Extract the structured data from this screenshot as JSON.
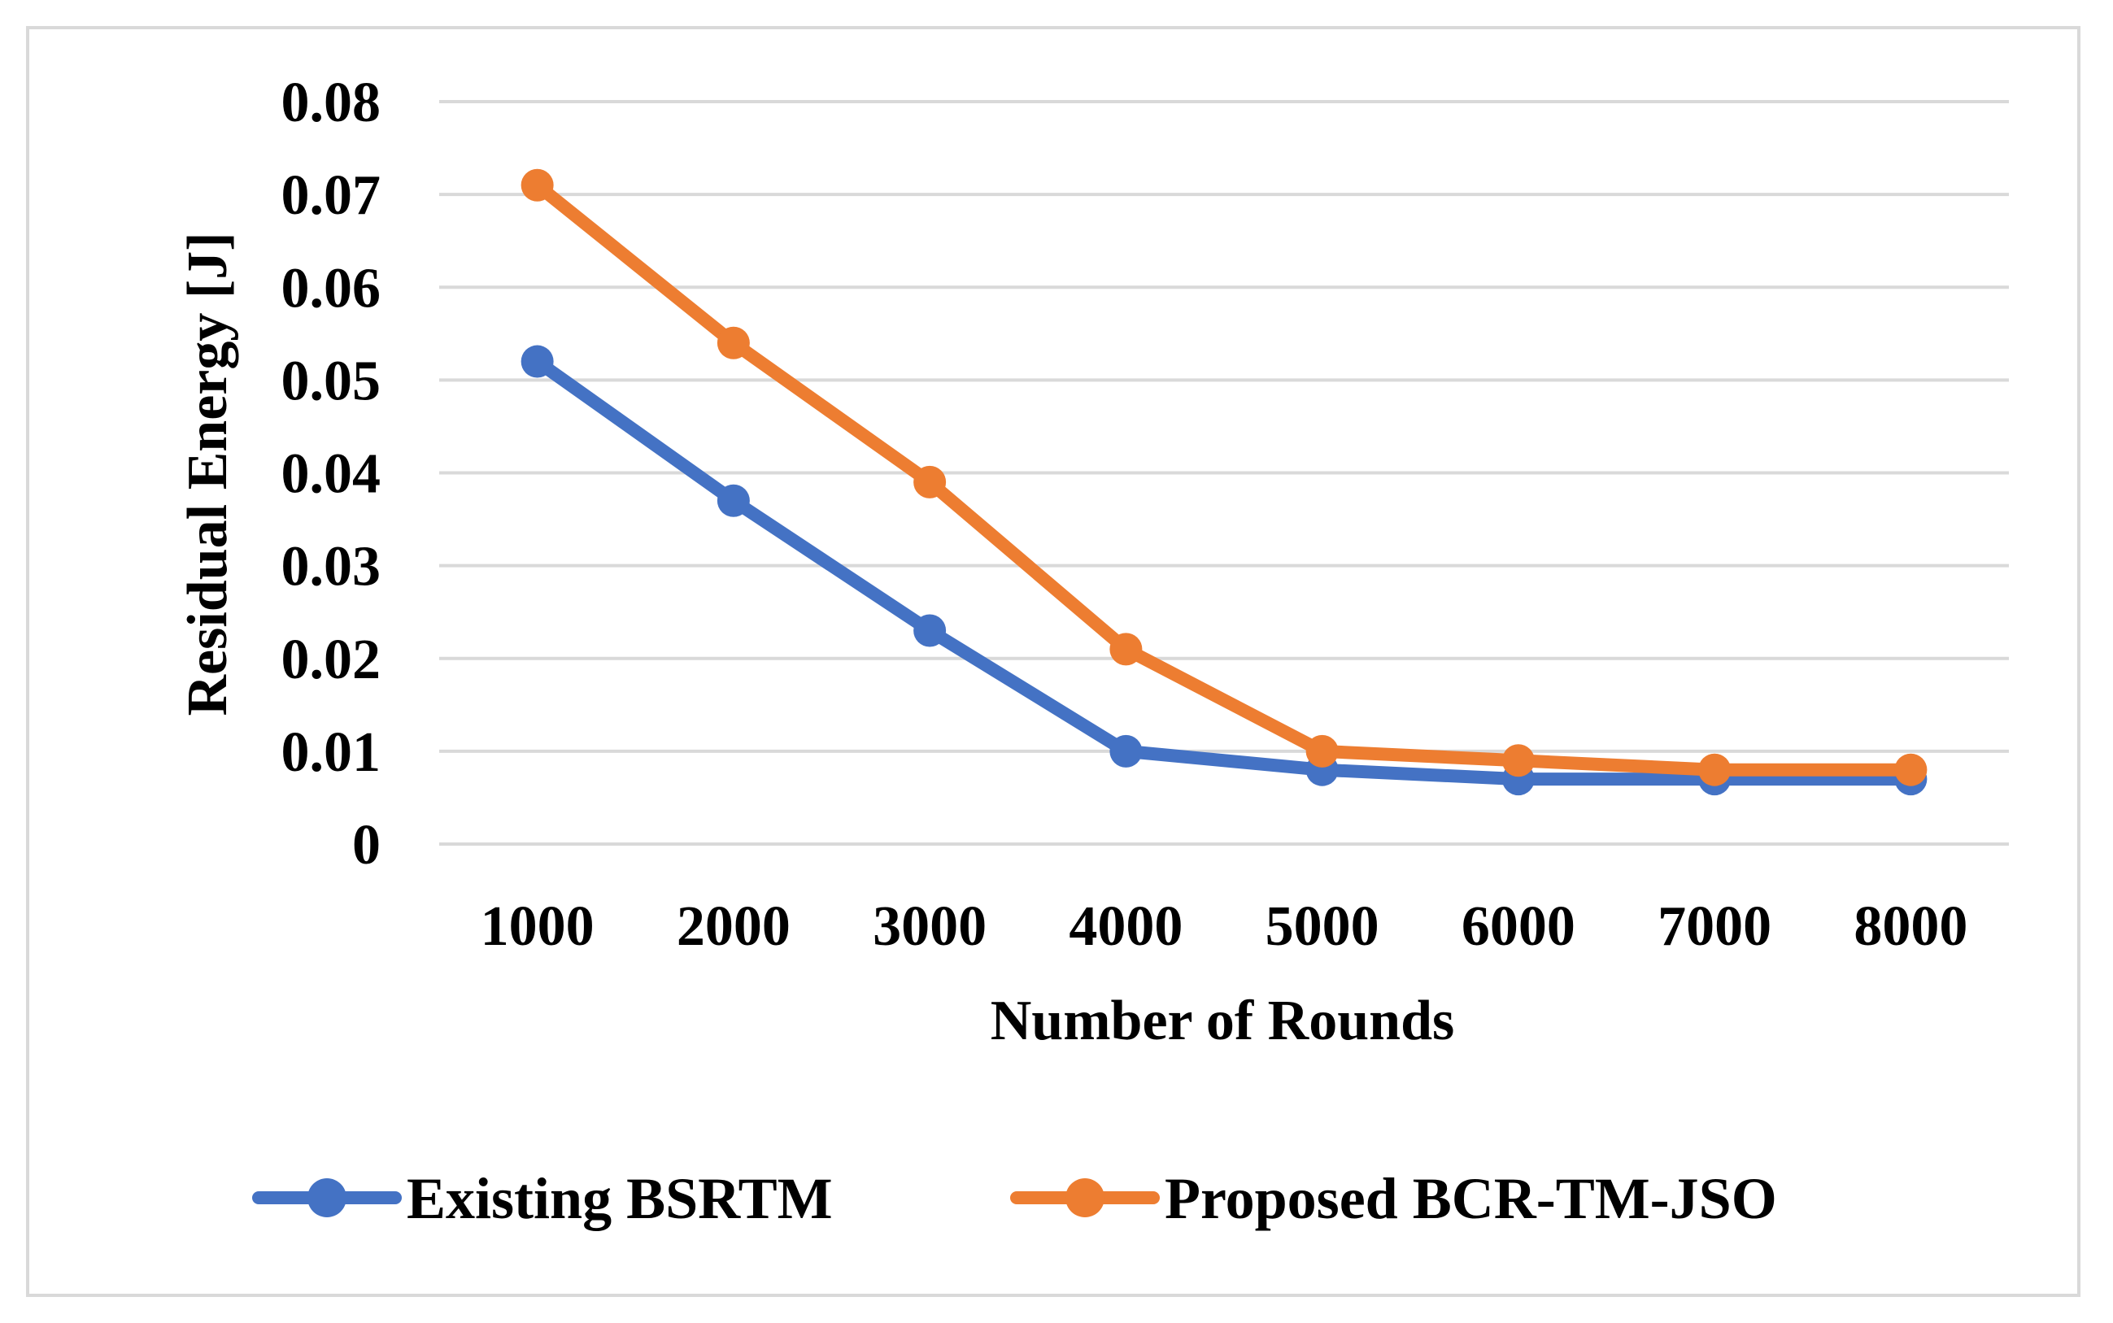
{
  "chart_data": {
    "type": "line",
    "title": "",
    "xlabel": "Number of Rounds",
    "ylabel": "Residual Energy [J]",
    "categories": [
      "1000",
      "2000",
      "3000",
      "4000",
      "5000",
      "6000",
      "7000",
      "8000"
    ],
    "y_ticks": [
      "0",
      "0.01",
      "0.02",
      "0.03",
      "0.04",
      "0.05",
      "0.06",
      "0.07",
      "0.08"
    ],
    "ylim": [
      0,
      0.08
    ],
    "grid": true,
    "legend_position": "bottom",
    "series": [
      {
        "name": "Existing BSRTM",
        "color": "#4472c4",
        "values": [
          0.052,
          0.037,
          0.023,
          0.01,
          0.008,
          0.007,
          0.007,
          0.007
        ]
      },
      {
        "name": "Proposed BCR-TM-JSO",
        "color": "#ed7d31",
        "values": [
          0.071,
          0.054,
          0.039,
          0.021,
          0.01,
          0.009,
          0.008,
          0.008
        ]
      }
    ]
  }
}
